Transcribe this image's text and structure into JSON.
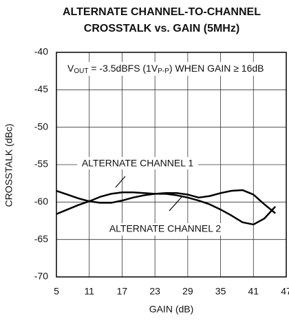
{
  "chart_data": {
    "type": "line",
    "title": [
      "ALTERNATE CHANNEL-TO-CHANNEL",
      "CROSSTALK vs. GAIN (5MHz)"
    ],
    "x_label": "GAIN (dB)",
    "y_label": "CROSSTALK (dBc)",
    "annotation": [
      {
        "text": "V",
        "sub": false
      },
      {
        "text": "OUT",
        "sub": true
      },
      {
        "text": " = -3.5dBFS (1V",
        "sub": false
      },
      {
        "text": "P-P",
        "sub": true
      },
      {
        "text": ") WHEN GAIN  ≥ 16dB",
        "sub": false
      }
    ],
    "x": [
      5,
      7,
      9,
      11,
      13,
      15,
      17,
      19,
      21,
      23,
      25,
      27,
      29,
      31,
      33,
      35,
      37,
      39,
      41,
      43,
      45
    ],
    "series": [
      {
        "name": "ALTERNATE CHANNEL 1",
        "color": "#000000",
        "values": [
          -61.6,
          -61,
          -60.4,
          -59.9,
          -59.3,
          -58.9,
          -58.7,
          -58.7,
          -58.8,
          -58.9,
          -58.9,
          -59.1,
          -59.4,
          -59.8,
          -60.3,
          -61,
          -61.8,
          -62.7,
          -63,
          -62.2,
          -60.6
        ]
      },
      {
        "name": "ALTERNATE CHANNEL 2",
        "color": "#000000",
        "values": [
          -58.5,
          -59,
          -59.5,
          -59.9,
          -60.1,
          -60.1,
          -59.8,
          -59.4,
          -59.1,
          -58.9,
          -58.8,
          -58.8,
          -59,
          -59.4,
          -59.2,
          -58.8,
          -58.5,
          -58.4,
          -59,
          -60.3,
          -61.5
        ]
      }
    ],
    "xlim": [
      5,
      47
    ],
    "xticks": [
      5,
      11,
      17,
      23,
      29,
      35,
      41,
      47
    ],
    "ylim": [
      -70,
      -40
    ],
    "yticks": [
      -70,
      -65,
      -60,
      -55,
      -50,
      -45,
      -40
    ],
    "grid": true
  }
}
